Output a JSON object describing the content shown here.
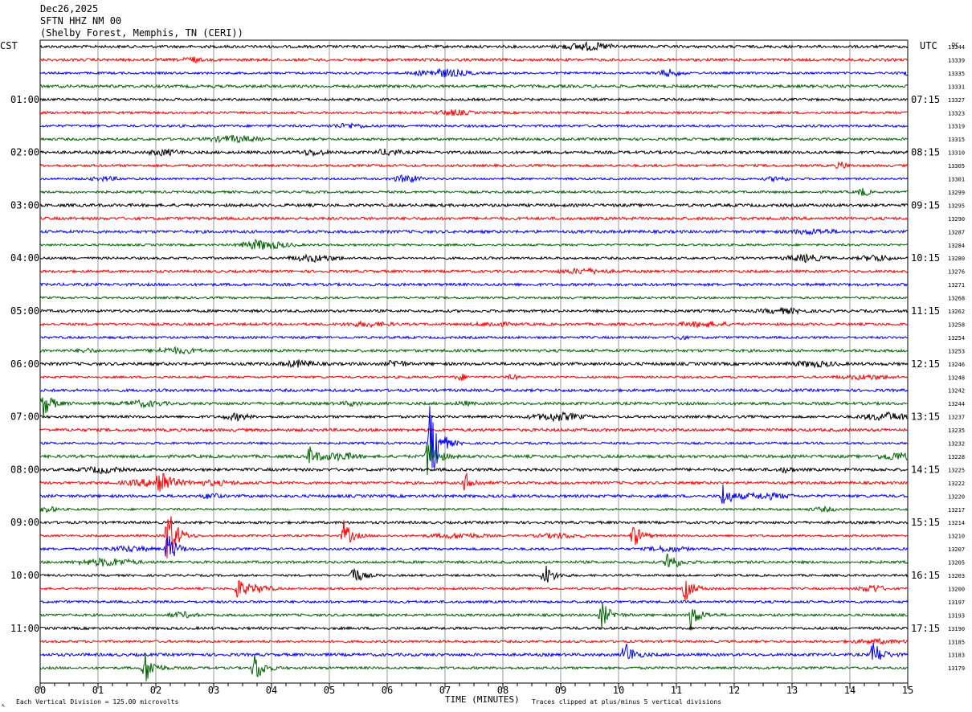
{
  "header": {
    "date": "Dec26,2025",
    "station": "SFTN HHZ NM 00",
    "location": "(Shelby Forest, Memphis, TN (CERI))"
  },
  "labels": {
    "left_tz": "CST",
    "right_tz": "UTC",
    "dc": "DC",
    "bottom_left": "Each Vertical Division =  125.00 microvolts",
    "bottom_right": "Traces clipped at plus/minus 5 vertical divisions",
    "corner_mark": "↖"
  },
  "chart_data": {
    "type": "line",
    "title": "",
    "xlabel": "TIME (MINUTES)",
    "ylabel": "",
    "xlim": [
      0,
      15
    ],
    "x_ticks": [
      "00",
      "01",
      "02",
      "03",
      "04",
      "05",
      "06",
      "07",
      "08",
      "09",
      "10",
      "11",
      "12",
      "13",
      "14",
      "15"
    ],
    "trace_colors": [
      "#000000",
      "#ff0000",
      "#0000ff",
      "#006400"
    ],
    "left_time_labels": [
      {
        "row": 4,
        "text": "01:00"
      },
      {
        "row": 8,
        "text": "02:00"
      },
      {
        "row": 12,
        "text": "03:00"
      },
      {
        "row": 16,
        "text": "04:00"
      },
      {
        "row": 20,
        "text": "05:00"
      },
      {
        "row": 24,
        "text": "06:00"
      },
      {
        "row": 28,
        "text": "07:00"
      },
      {
        "row": 32,
        "text": "08:00"
      },
      {
        "row": 36,
        "text": "09:00"
      },
      {
        "row": 40,
        "text": "10:00"
      },
      {
        "row": 44,
        "text": "11:00"
      }
    ],
    "right_time_labels": [
      {
        "row": 4,
        "text": "07:15"
      },
      {
        "row": 8,
        "text": "08:15"
      },
      {
        "row": 12,
        "text": "09:15"
      },
      {
        "row": 16,
        "text": "10:15"
      },
      {
        "row": 20,
        "text": "11:15"
      },
      {
        "row": 24,
        "text": "12:15"
      },
      {
        "row": 28,
        "text": "13:15"
      },
      {
        "row": 32,
        "text": "14:15"
      },
      {
        "row": 36,
        "text": "15:15"
      },
      {
        "row": 40,
        "text": "16:15"
      },
      {
        "row": 44,
        "text": "17:15"
      }
    ],
    "dc_values": [
      "13344",
      "13339",
      "13335",
      "13331",
      "13327",
      "13323",
      "13319",
      "13315",
      "13310",
      "13305",
      "13301",
      "13299",
      "13295",
      "13290",
      "13287",
      "13284",
      "13280",
      "13276",
      "13271",
      "13268",
      "13262",
      "13258",
      "13254",
      "13253",
      "13246",
      "13248",
      "13242",
      "13244",
      "13237",
      "13235",
      "13232",
      "13228",
      "13225",
      "13222",
      "13220",
      "13217",
      "13214",
      "13210",
      "13207",
      "13205",
      "13203",
      "13200",
      "13197",
      "13193",
      "13190",
      "13185",
      "13183",
      "13179"
    ],
    "events": [
      {
        "row": 27,
        "minute": 0.05,
        "amp": 18
      },
      {
        "row": 30,
        "minute": 6.75,
        "amp": 60
      },
      {
        "row": 31,
        "minute": 6.7,
        "amp": 28
      },
      {
        "row": 31,
        "minute": 4.65,
        "amp": 12
      },
      {
        "row": 33,
        "minute": 2.05,
        "amp": 22
      },
      {
        "row": 33,
        "minute": 7.35,
        "amp": 12
      },
      {
        "row": 34,
        "minute": 11.8,
        "amp": 16
      },
      {
        "row": 37,
        "minute": 2.2,
        "amp": 45
      },
      {
        "row": 37,
        "minute": 5.25,
        "amp": 18
      },
      {
        "row": 37,
        "minute": 10.25,
        "amp": 16
      },
      {
        "row": 38,
        "minute": 2.2,
        "amp": 22
      },
      {
        "row": 39,
        "minute": 10.85,
        "amp": 16
      },
      {
        "row": 40,
        "minute": 5.4,
        "amp": 14
      },
      {
        "row": 40,
        "minute": 8.7,
        "amp": 18
      },
      {
        "row": 41,
        "minute": 3.4,
        "amp": 14
      },
      {
        "row": 41,
        "minute": 11.15,
        "amp": 16
      },
      {
        "row": 43,
        "minute": 9.7,
        "amp": 18
      },
      {
        "row": 43,
        "minute": 11.25,
        "amp": 18
      },
      {
        "row": 46,
        "minute": 10.1,
        "amp": 18
      },
      {
        "row": 46,
        "minute": 14.4,
        "amp": 18
      },
      {
        "row": 47,
        "minute": 1.8,
        "amp": 24
      },
      {
        "row": 47,
        "minute": 3.7,
        "amp": 22
      }
    ]
  }
}
